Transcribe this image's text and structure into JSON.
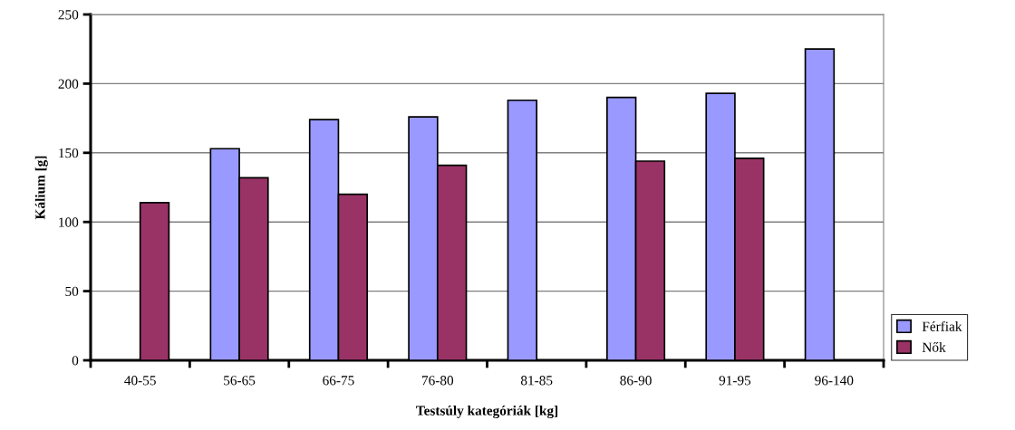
{
  "chart_data": {
    "type": "bar",
    "xlabel": "Testsúly kategóriák [kg]",
    "ylabel": "Kálium [g]",
    "categories": [
      "40-55",
      "56-65",
      "66-75",
      "76-80",
      "81-85",
      "86-90",
      "91-95",
      "96-140"
    ],
    "series": [
      {
        "name": "Férfiak",
        "color": "#9999ff",
        "values": [
          null,
          153,
          174,
          176,
          188,
          190,
          193,
          225
        ]
      },
      {
        "name": "Nők",
        "color": "#993366",
        "values": [
          114,
          132,
          120,
          141,
          null,
          144,
          146,
          null
        ]
      }
    ],
    "ylim": [
      0,
      250
    ],
    "yticks": [
      0,
      50,
      100,
      150,
      200,
      250
    ],
    "grid": "y",
    "legend": "bottom right"
  }
}
